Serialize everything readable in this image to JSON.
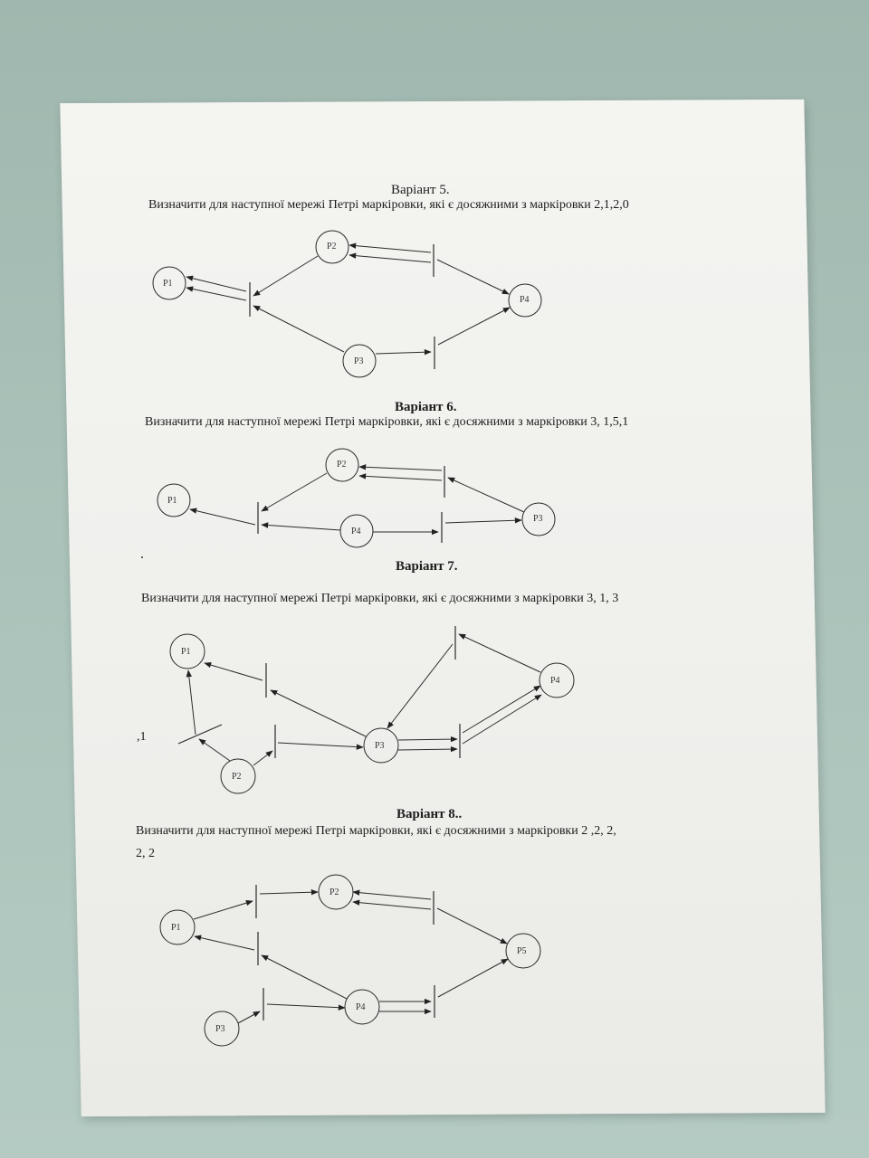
{
  "document": {
    "variants": [
      {
        "heading": "Варіант 5.",
        "task": "Визначити для наступної мережі Петрі  маркіровки, які є  досяжними  з маркіровки   2,1,2,0",
        "places": [
          "P1",
          "P2",
          "P3",
          "P4"
        ]
      },
      {
        "heading": "Варіант 6.",
        "task": "Визначити для наступної мережі Петрі  маркіровки, які є  досяжними  з маркіровки     3, 1,5,1",
        "places": [
          "P1",
          "P2",
          "P4",
          "P3"
        ]
      },
      {
        "heading": "Варіант 7.",
        "task": "Визначити для наступної мережі Петрі  маркіровки, які є  досяжними  з маркіровки     3, 1, 3",
        "margin_note": ",1",
        "places": [
          "P1",
          "P4",
          "P3",
          "P2"
        ]
      },
      {
        "heading": "Варіант 8..",
        "task_line1": "Визначити для наступної мережі Петрі  маркіровки, які є  досяжними  з маркіровки    2 ,2, 2,",
        "task_line2": "2, 2",
        "places": [
          "P2",
          "P1",
          "P5",
          "P4",
          "P3"
        ]
      }
    ],
    "stray_mark": "."
  }
}
